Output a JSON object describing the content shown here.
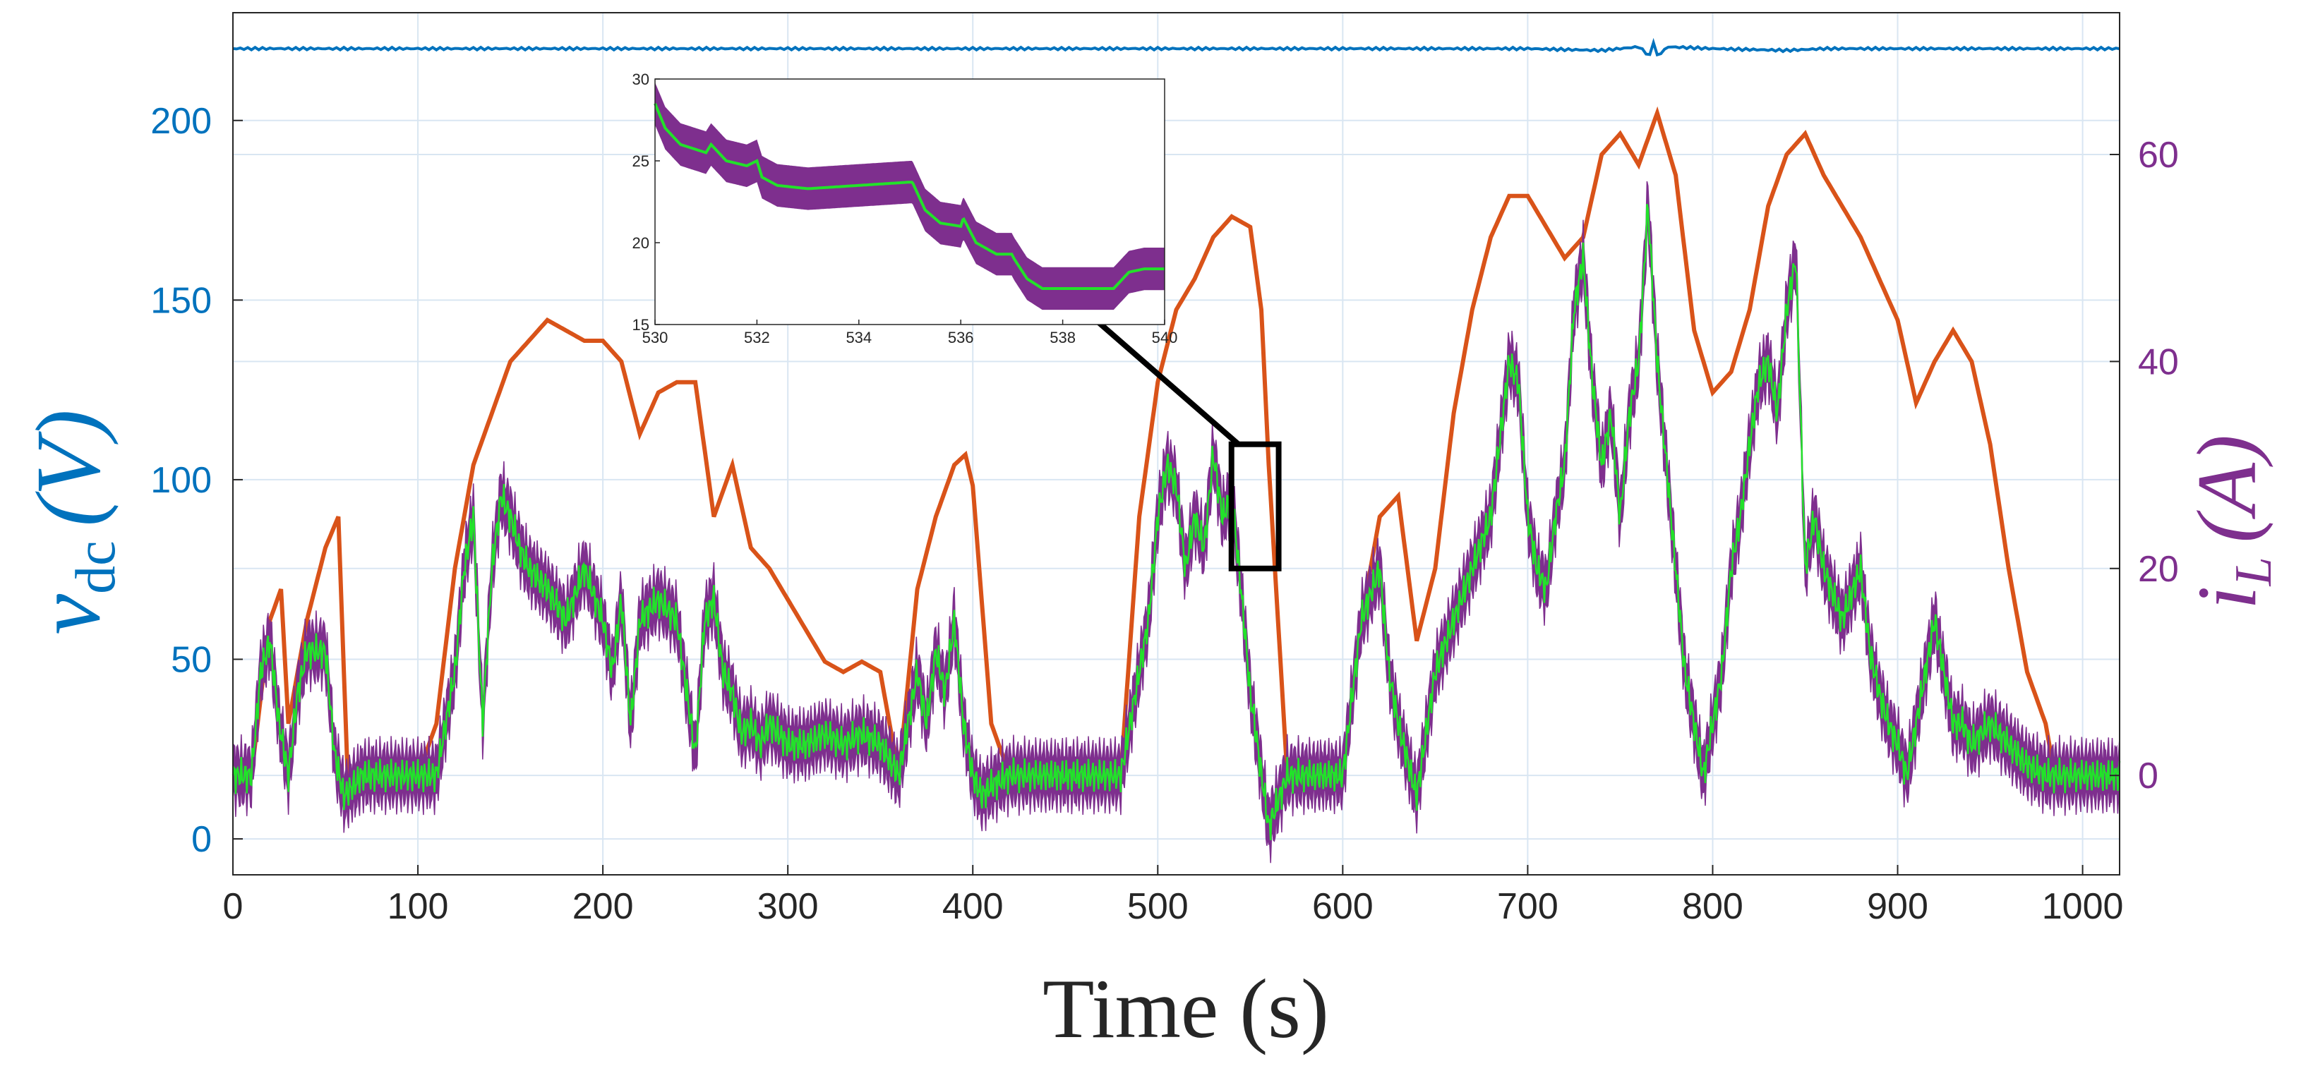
{
  "colors": {
    "vdc": "#0072BD",
    "iL_axis": "#7E2F8E",
    "iL_band": "#7E2F8E",
    "iL_line": "#22E22A",
    "orange": "#D95319",
    "grid": "#D9E6F2",
    "axis": "#262626"
  },
  "chart_data": [
    {
      "id": "main",
      "type": "line",
      "xlabel": "Time (s)",
      "ylabel_left": {
        "symbol": "v",
        "subscript": "dc",
        "unit": "(V)"
      },
      "ylabel_right": {
        "symbol": "i",
        "subscript": "L",
        "unit": "(A)"
      },
      "xlim": [
        0,
        1020
      ],
      "ylim_left": [
        -10,
        230
      ],
      "ylim_right": [
        -9.6,
        73.7
      ],
      "xticks": [
        0,
        100,
        200,
        300,
        400,
        500,
        600,
        700,
        800,
        900,
        1000
      ],
      "yticks_left": [
        0,
        50,
        100,
        150,
        200
      ],
      "yticks_right": [
        0,
        20,
        40,
        60
      ],
      "grid": true,
      "series": [
        {
          "name": "v_dc",
          "axis": "left",
          "x": [
            0,
            400,
            700,
            740,
            760,
            766,
            768,
            770,
            776,
            800,
            840,
            860,
            1020
          ],
          "y": [
            220,
            220,
            220,
            219.5,
            220.5,
            218,
            222,
            218,
            220.5,
            220,
            219.5,
            220,
            220
          ]
        },
        {
          "name": "reference (orange)",
          "axis": "right",
          "x": [
            0,
            10,
            20,
            26,
            30,
            40,
            50,
            57,
            62,
            70,
            100,
            110,
            120,
            130,
            140,
            150,
            160,
            170,
            180,
            190,
            200,
            210,
            220,
            230,
            240,
            250,
            260,
            270,
            280,
            290,
            300,
            310,
            320,
            330,
            340,
            350,
            360,
            370,
            380,
            390,
            396,
            400,
            410,
            420,
            460,
            480,
            490,
            500,
            510,
            520,
            530,
            540,
            550,
            556,
            560,
            570,
            600,
            610,
            620,
            630,
            640,
            650,
            660,
            670,
            680,
            690,
            700,
            710,
            720,
            730,
            740,
            750,
            760,
            770,
            780,
            790,
            800,
            810,
            820,
            830,
            840,
            850,
            860,
            870,
            880,
            890,
            900,
            910,
            920,
            930,
            940,
            950,
            960,
            970,
            980,
            985,
            1020
          ],
          "y": [
            0,
            0,
            15,
            18,
            5,
            15,
            22,
            25,
            0,
            0,
            0,
            5,
            20,
            30,
            35,
            40,
            42,
            44,
            43,
            42,
            42,
            40,
            33,
            37,
            38,
            38,
            25,
            30,
            22,
            20,
            17,
            14,
            11,
            10,
            11,
            10,
            0,
            18,
            25,
            30,
            31,
            28,
            5,
            0,
            0,
            0,
            25,
            38,
            45,
            48,
            52,
            54,
            53,
            45,
            30,
            0,
            0,
            15,
            25,
            27,
            13,
            20,
            35,
            45,
            52,
            56,
            56,
            53,
            50,
            52,
            60,
            62,
            59,
            64,
            58,
            43,
            37,
            39,
            45,
            55,
            60,
            62,
            58,
            55,
            52,
            48,
            44,
            36,
            40,
            43,
            40,
            32,
            20,
            10,
            5,
            0,
            0
          ]
        },
        {
          "name": "i_L (measured, green with purple band)",
          "axis": "right",
          "x": [
            0,
            10,
            15,
            20,
            25,
            30,
            35,
            40,
            50,
            55,
            60,
            70,
            110,
            120,
            125,
            130,
            135,
            140,
            145,
            150,
            155,
            160,
            170,
            180,
            190,
            200,
            205,
            210,
            215,
            220,
            230,
            240,
            250,
            255,
            260,
            265,
            270,
            275,
            280,
            285,
            290,
            300,
            310,
            320,
            330,
            340,
            350,
            360,
            370,
            375,
            380,
            385,
            390,
            395,
            400,
            405,
            410,
            420,
            480,
            490,
            495,
            500,
            505,
            510,
            515,
            520,
            525,
            530,
            535,
            540,
            545,
            550,
            560,
            570,
            600,
            610,
            620,
            625,
            630,
            640,
            650,
            660,
            670,
            680,
            690,
            695,
            700,
            705,
            710,
            715,
            720,
            725,
            730,
            735,
            740,
            745,
            750,
            755,
            760,
            765,
            770,
            775,
            780,
            785,
            790,
            795,
            800,
            805,
            810,
            815,
            820,
            825,
            830,
            835,
            840,
            845,
            850,
            855,
            860,
            870,
            880,
            885,
            890,
            895,
            900,
            905,
            910,
            915,
            920,
            925,
            930,
            935,
            940,
            950,
            960,
            970,
            980,
            985,
            1020
          ],
          "y": [
            0,
            0,
            10,
            13,
            5,
            0,
            8,
            12,
            12,
            2,
            -2,
            0,
            0,
            10,
            20,
            25,
            5,
            20,
            27,
            25,
            22,
            20,
            18,
            15,
            20,
            15,
            10,
            17,
            5,
            15,
            17,
            15,
            2,
            15,
            17,
            10,
            8,
            4,
            5,
            3,
            5,
            3,
            3,
            4,
            3,
            4,
            3,
            0,
            10,
            5,
            12,
            8,
            15,
            5,
            0,
            -2,
            -1,
            0,
            0,
            10,
            15,
            25,
            30,
            28,
            20,
            25,
            22,
            31,
            25,
            27,
            18,
            8,
            -5,
            0,
            0,
            15,
            20,
            10,
            5,
            -2,
            10,
            15,
            20,
            25,
            40,
            38,
            25,
            20,
            18,
            25,
            30,
            45,
            50,
            38,
            30,
            35,
            25,
            35,
            40,
            55,
            40,
            30,
            20,
            10,
            5,
            0,
            5,
            10,
            20,
            25,
            32,
            38,
            40,
            35,
            45,
            50,
            20,
            25,
            20,
            15,
            20,
            12,
            8,
            5,
            3,
            0,
            5,
            10,
            15,
            10,
            5,
            5,
            3,
            5,
            3,
            1,
            0,
            0,
            0
          ]
        }
      ],
      "annotations": [
        {
          "type": "zoom-box",
          "xrange": [
            520,
            552
          ],
          "yrange": [
            20,
            32
          ]
        },
        {
          "type": "arrow",
          "from": [
            536,
            32
          ],
          "to": [
            425,
            50
          ]
        }
      ]
    },
    {
      "id": "inset",
      "type": "line",
      "xlim": [
        530,
        540
      ],
      "ylim": [
        15,
        30
      ],
      "xticks": [
        530,
        532,
        534,
        536,
        538,
        540
      ],
      "yticks": [
        15,
        20,
        25,
        30
      ],
      "grid": false,
      "series": [
        {
          "name": "i_L zoom",
          "x": [
            530,
            530.2,
            530.5,
            531,
            531.1,
            531.4,
            531.8,
            532,
            532.1,
            532.4,
            533,
            534,
            535,
            535.05,
            535.3,
            535.6,
            536,
            536.05,
            536.3,
            536.7,
            537,
            537.05,
            537.3,
            537.6,
            538,
            538.5,
            539,
            539.3,
            539.6,
            540
          ],
          "y": [
            28.5,
            27,
            26,
            25.5,
            26,
            25,
            24.7,
            25,
            24,
            23.5,
            23.3,
            23.5,
            23.7,
            23.7,
            22,
            21.2,
            21,
            21.5,
            20,
            19.3,
            19.3,
            19,
            17.8,
            17.2,
            17.2,
            17.2,
            17.2,
            18.2,
            18.4,
            18.4
          ]
        }
      ]
    }
  ]
}
